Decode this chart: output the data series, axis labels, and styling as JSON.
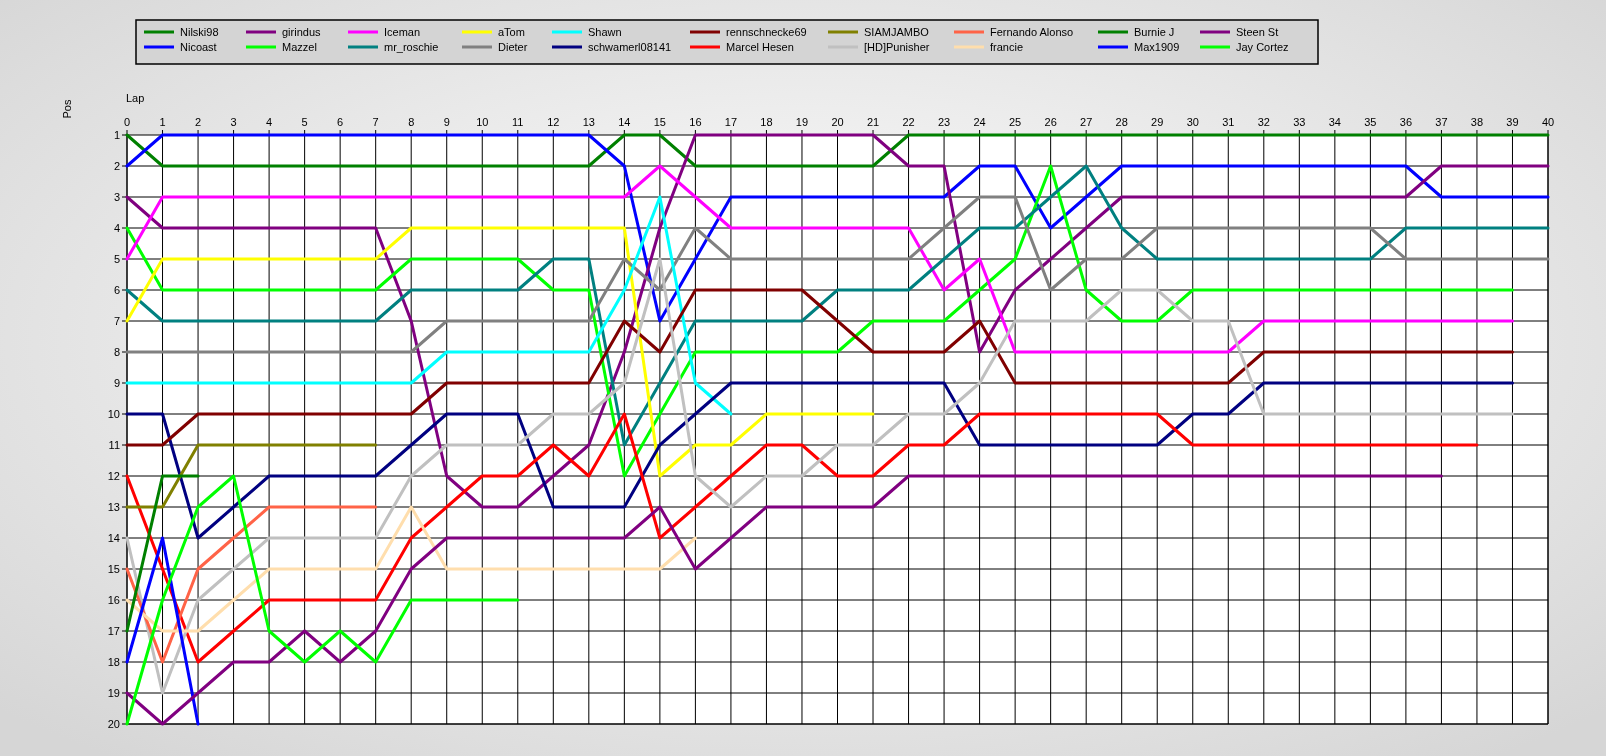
{
  "chart_data": {
    "type": "line",
    "xlabel": "Lap",
    "ylabel": "Pos",
    "xlim": [
      0,
      40
    ],
    "xticks": [
      0,
      1,
      2,
      3,
      4,
      5,
      6,
      7,
      8,
      9,
      10,
      11,
      12,
      13,
      14,
      15,
      16,
      17,
      18,
      19,
      20,
      21,
      22,
      23,
      24,
      25,
      26,
      27,
      28,
      29,
      30,
      31,
      32,
      33,
      34,
      35,
      36,
      37,
      38,
      39,
      40
    ],
    "ylim": [
      20,
      1
    ],
    "yticks": [
      1,
      2,
      3,
      4,
      5,
      6,
      7,
      8,
      9,
      10,
      11,
      12,
      13,
      14,
      15,
      16,
      17,
      18,
      19,
      20
    ],
    "x": [
      0,
      1,
      2,
      3,
      4,
      5,
      6,
      7,
      8,
      9,
      10,
      11,
      12,
      13,
      14,
      15,
      16,
      17,
      18,
      19,
      20,
      21,
      22,
      23,
      24,
      25,
      26,
      27,
      28,
      29,
      30,
      31,
      32,
      33,
      34,
      35,
      36,
      37,
      38,
      39,
      40
    ],
    "grid": true,
    "legend": "top",
    "series": [
      {
        "name": "Nilski98",
        "color": "#008000",
        "values": [
          1,
          2,
          2,
          2,
          2,
          2,
          2,
          2,
          2,
          2,
          2,
          2,
          2,
          2,
          1,
          1,
          2,
          2,
          2,
          2,
          2,
          2,
          1,
          1,
          1,
          1,
          1,
          1,
          1,
          1,
          1,
          1,
          1,
          1,
          1,
          1,
          1,
          1,
          1,
          1,
          1
        ]
      },
      {
        "name": "Nicoast",
        "color": "#0000ff",
        "values": [
          2,
          1,
          1,
          1,
          1,
          1,
          1,
          1,
          1,
          1,
          1,
          1,
          1,
          1,
          2,
          7,
          5,
          3,
          3,
          3,
          3,
          3,
          3,
          3,
          2,
          2,
          4,
          3,
          2,
          2,
          2,
          2,
          2,
          2,
          2,
          2,
          2,
          3,
          3,
          3,
          3
        ]
      },
      {
        "name": "girindus",
        "color": "#800080",
        "values": [
          3,
          4,
          4,
          4,
          4,
          4,
          4,
          4,
          7,
          12,
          13,
          13,
          12,
          11,
          8,
          4,
          1,
          1,
          1,
          1,
          1,
          1,
          2,
          2,
          8,
          6,
          5,
          4,
          3,
          3,
          3,
          3,
          3,
          3,
          3,
          3,
          3,
          2,
          2,
          2,
          2
        ]
      },
      {
        "name": "Mazzel",
        "color": "#00ff00",
        "values": [
          4,
          6,
          6,
          6,
          6,
          6,
          6,
          6,
          5,
          5,
          5,
          5,
          6,
          6,
          12,
          10,
          8,
          8,
          8,
          8,
          8,
          7,
          7,
          7,
          6,
          5,
          2,
          6,
          7,
          7,
          6,
          6,
          6,
          6,
          6,
          6,
          6,
          6,
          6,
          6,
          null
        ]
      },
      {
        "name": "Iceman",
        "color": "#ff00ff",
        "values": [
          5,
          3,
          3,
          3,
          3,
          3,
          3,
          3,
          3,
          3,
          3,
          3,
          3,
          3,
          3,
          2,
          3,
          4,
          4,
          4,
          4,
          4,
          4,
          6,
          5,
          8,
          8,
          8,
          8,
          8,
          8,
          8,
          7,
          7,
          7,
          7,
          7,
          7,
          7,
          7,
          null
        ]
      },
      {
        "name": "mr_roschie",
        "color": "#008080",
        "values": [
          6,
          7,
          7,
          7,
          7,
          7,
          7,
          7,
          6,
          6,
          6,
          6,
          5,
          5,
          11,
          9,
          7,
          7,
          7,
          7,
          6,
          6,
          6,
          5,
          4,
          4,
          3,
          2,
          4,
          5,
          5,
          5,
          5,
          5,
          5,
          5,
          4,
          4,
          4,
          4,
          4
        ]
      },
      {
        "name": "aTom",
        "color": "#ffff00",
        "values": [
          7,
          5,
          5,
          5,
          5,
          5,
          5,
          5,
          4,
          4,
          4,
          4,
          4,
          4,
          4,
          12,
          11,
          11,
          10,
          10,
          10,
          10,
          null,
          null,
          null,
          null,
          null,
          null,
          null,
          null,
          null,
          null,
          null,
          null,
          null,
          null,
          null,
          null,
          null,
          null,
          null
        ]
      },
      {
        "name": "Dieter",
        "color": "#808080",
        "values": [
          8,
          8,
          8,
          8,
          8,
          8,
          8,
          8,
          8,
          7,
          7,
          7,
          7,
          7,
          5,
          6,
          4,
          5,
          5,
          5,
          5,
          5,
          5,
          4,
          3,
          3,
          6,
          5,
          5,
          4,
          4,
          4,
          4,
          4,
          4,
          4,
          5,
          5,
          5,
          5,
          5
        ]
      },
      {
        "name": "Shawn",
        "color": "#00ffff",
        "values": [
          9,
          9,
          9,
          9,
          9,
          9,
          9,
          9,
          9,
          8,
          8,
          8,
          8,
          8,
          6,
          3,
          9,
          10,
          null,
          null,
          null,
          null,
          null,
          null,
          null,
          null,
          null,
          null,
          null,
          null,
          null,
          null,
          null,
          null,
          null,
          null,
          null,
          null,
          null,
          null,
          null
        ]
      },
      {
        "name": "schwamerl08141",
        "color": "#000080",
        "values": [
          10,
          10,
          14,
          13,
          12,
          12,
          12,
          12,
          11,
          10,
          10,
          10,
          13,
          13,
          13,
          11,
          10,
          9,
          9,
          9,
          9,
          9,
          9,
          9,
          11,
          11,
          11,
          11,
          11,
          11,
          10,
          10,
          9,
          9,
          9,
          9,
          9,
          9,
          9,
          9,
          null
        ]
      },
      {
        "name": "rennschnecke69",
        "color": "#800000",
        "values": [
          11,
          11,
          10,
          10,
          10,
          10,
          10,
          10,
          10,
          9,
          9,
          9,
          9,
          9,
          7,
          8,
          6,
          6,
          6,
          6,
          7,
          8,
          8,
          8,
          7,
          9,
          9,
          9,
          9,
          9,
          9,
          9,
          8,
          8,
          8,
          8,
          8,
          8,
          8,
          8,
          null
        ]
      },
      {
        "name": "Marcel Hesen",
        "color": "#ff0000",
        "values": [
          12,
          15,
          18,
          17,
          16,
          16,
          16,
          16,
          14,
          13,
          12,
          12,
          11,
          12,
          10,
          14,
          13,
          12,
          11,
          11,
          12,
          12,
          11,
          11,
          10,
          10,
          10,
          10,
          10,
          10,
          11,
          11,
          11,
          11,
          11,
          11,
          11,
          11,
          11,
          null,
          null
        ]
      },
      {
        "name": "SIAMJAMBO",
        "color": "#808000",
        "values": [
          13,
          13,
          11,
          11,
          11,
          11,
          11,
          11,
          null,
          null,
          null,
          null,
          null,
          null,
          null,
          null,
          null,
          null,
          null,
          null,
          null,
          null,
          null,
          null,
          null,
          null,
          null,
          null,
          null,
          null,
          null,
          null,
          null,
          null,
          null,
          null,
          null,
          null,
          null,
          null,
          null
        ]
      },
      {
        "name": "[HD]Punisher",
        "color": "#c0c0c0",
        "values": [
          14,
          19,
          16,
          15,
          14,
          14,
          14,
          14,
          12,
          11,
          11,
          11,
          10,
          10,
          9,
          5,
          12,
          13,
          12,
          12,
          11,
          11,
          10,
          10,
          9,
          7,
          7,
          7,
          6,
          6,
          7,
          7,
          10,
          10,
          10,
          10,
          10,
          10,
          10,
          10,
          null
        ]
      },
      {
        "name": "Fernando Alonso",
        "color": "#ff6347",
        "values": [
          15,
          18,
          15,
          14,
          13,
          13,
          13,
          13,
          null,
          null,
          null,
          null,
          null,
          null,
          null,
          null,
          null,
          null,
          null,
          null,
          null,
          null,
          null,
          null,
          null,
          null,
          null,
          null,
          null,
          null,
          null,
          null,
          null,
          null,
          null,
          null,
          null,
          null,
          null,
          null,
          null
        ]
      },
      {
        "name": "francie",
        "color": "#ffdead",
        "values": [
          16,
          17,
          17,
          16,
          15,
          15,
          15,
          15,
          13,
          15,
          15,
          15,
          15,
          15,
          15,
          15,
          14,
          null,
          null,
          null,
          null,
          null,
          null,
          null,
          null,
          null,
          null,
          null,
          null,
          null,
          null,
          null,
          null,
          null,
          null,
          null,
          null,
          null,
          null,
          null,
          null
        ]
      },
      {
        "name": "Burnie J",
        "color": "#008000",
        "values": [
          17,
          12,
          12,
          null,
          null,
          null,
          null,
          null,
          null,
          null,
          null,
          null,
          null,
          null,
          null,
          null,
          null,
          null,
          null,
          null,
          null,
          null,
          null,
          null,
          null,
          null,
          null,
          null,
          null,
          null,
          null,
          null,
          null,
          null,
          null,
          null,
          null,
          null,
          null,
          null,
          null
        ]
      },
      {
        "name": "Max1909",
        "color": "#0000ff",
        "values": [
          18,
          14,
          20,
          null,
          null,
          null,
          null,
          null,
          null,
          null,
          null,
          null,
          null,
          null,
          null,
          null,
          null,
          null,
          null,
          null,
          null,
          null,
          null,
          null,
          null,
          null,
          null,
          null,
          null,
          null,
          null,
          null,
          null,
          null,
          null,
          null,
          null,
          null,
          null,
          null,
          null
        ]
      },
      {
        "name": "Steen St",
        "color": "#800080",
        "values": [
          19,
          20,
          19,
          18,
          18,
          17,
          18,
          17,
          15,
          14,
          14,
          14,
          14,
          14,
          14,
          13,
          15,
          14,
          13,
          13,
          13,
          13,
          12,
          12,
          12,
          12,
          12,
          12,
          12,
          12,
          12,
          12,
          12,
          12,
          12,
          12,
          12,
          12,
          null,
          null,
          null
        ]
      },
      {
        "name": "Jay Cortez",
        "color": "#00ff00",
        "values": [
          20,
          16,
          13,
          12,
          17,
          18,
          17,
          18,
          16,
          16,
          16,
          16,
          null,
          null,
          null,
          null,
          null,
          null,
          null,
          null,
          null,
          null,
          null,
          null,
          null,
          null,
          null,
          null,
          null,
          null,
          null,
          null,
          null,
          null,
          null,
          null,
          null,
          null,
          null,
          null,
          null
        ]
      }
    ]
  }
}
